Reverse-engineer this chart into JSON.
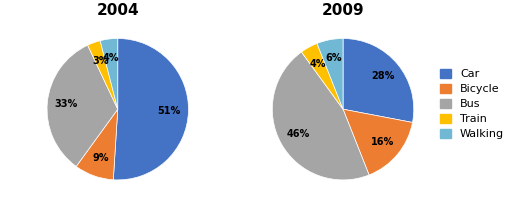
{
  "chart_2004": {
    "title": "2004",
    "values": [
      51,
      9,
      33,
      3,
      4
    ],
    "labels": [
      "51%",
      "9%",
      "33%",
      "3%",
      "4%"
    ],
    "startangle": 90
  },
  "chart_2009": {
    "title": "2009",
    "values": [
      28,
      16,
      46,
      4,
      6
    ],
    "labels": [
      "28%",
      "16%",
      "46%",
      "4%",
      "6%"
    ],
    "startangle": 90
  },
  "categories": [
    "Car",
    "Bicycle",
    "Bus",
    "Train",
    "Walking"
  ],
  "colors": [
    "#4472C4",
    "#ED7D31",
    "#A5A5A5",
    "#FFC000",
    "#70B8D4"
  ],
  "title_fontsize": 11,
  "label_fontsize": 7,
  "legend_fontsize": 8,
  "background_color": "#ffffff"
}
